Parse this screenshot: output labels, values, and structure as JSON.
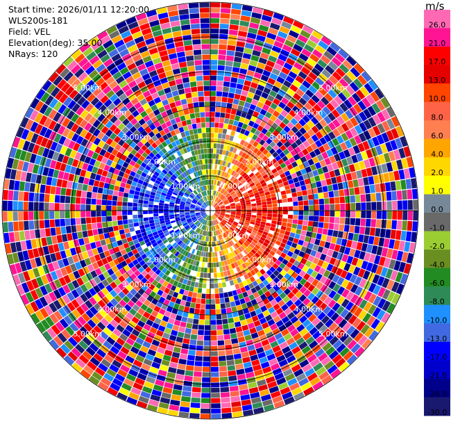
{
  "header": {
    "start_time": "Start time: 2026/01/11 12:20:00",
    "site": "WLS200s-181",
    "field": "Field: VEL",
    "elevation": "Elevation(deg): 35.00",
    "nrays": "NRays: 120"
  },
  "chart_data": {
    "type": "heatmap",
    "projection": "polar-ppi",
    "field": "VEL",
    "elevation_deg": 35.0,
    "n_rays": 120,
    "range_km": [
      0,
      6.0
    ],
    "range_ring_labels": [
      "1.00km",
      "2.00km",
      "3.00km",
      "4.00km",
      "5.00km"
    ],
    "colorbar": {
      "unit": "m/s",
      "tick_labels": [
        "26.0",
        "21.0",
        "17.0",
        "13.0",
        "10.0",
        "8.0",
        "6.0",
        "4.0",
        "2.0",
        "1.0",
        "0.0",
        "-1.0",
        "-2.0",
        "-4.0",
        "-6.0",
        "-8.0",
        "-10.0",
        "-13.0",
        "-17.0",
        "-21.0",
        "-26.0",
        "-30.0"
      ],
      "colors": [
        "#ff69b4",
        "#ff1493",
        "#ff0000",
        "#e60000",
        "#ff4500",
        "#ff6347",
        "#ff7f50",
        "#ffa500",
        "#ffd700",
        "#ffff00",
        "#778899",
        "#696969",
        "#9acd32",
        "#6b8e23",
        "#228b22",
        "#2e8b57",
        "#1e90ff",
        "#4169e1",
        "#0000ff",
        "#0000cd",
        "#00008b",
        "#191970"
      ]
    }
  }
}
